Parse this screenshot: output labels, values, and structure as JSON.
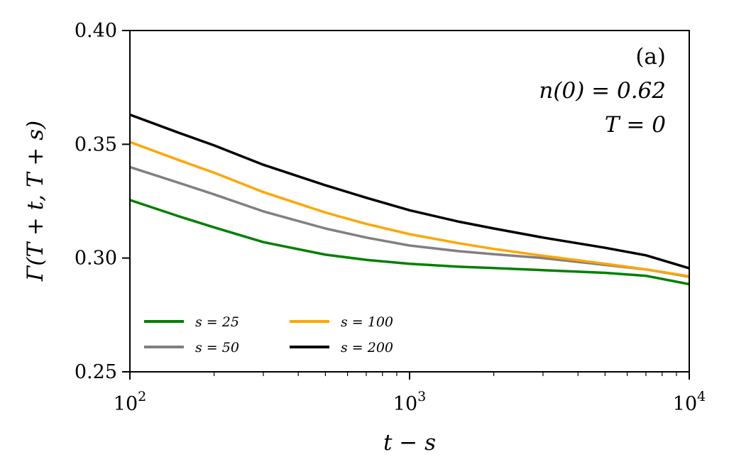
{
  "chart_data": {
    "type": "line",
    "panel_label": "(a)",
    "annotations": [
      "n(0) = 0.62",
      "T = 0"
    ],
    "xlabel": "t − s",
    "ylabel": "Γ(T + t, T + s)",
    "xscale": "log",
    "xlim": [
      100,
      10000
    ],
    "ylim": [
      0.25,
      0.4
    ],
    "x_ticks": [
      {
        "value": 100,
        "base": "10",
        "exp": "2"
      },
      {
        "value": 1000,
        "base": "10",
        "exp": "3"
      },
      {
        "value": 10000,
        "base": "10",
        "exp": "4"
      }
    ],
    "y_ticks": [
      {
        "value": 0.25,
        "label": "0.25"
      },
      {
        "value": 0.3,
        "label": "0.30"
      },
      {
        "value": 0.35,
        "label": "0.35"
      },
      {
        "value": 0.4,
        "label": "0.40"
      }
    ],
    "grid": false,
    "legend_position": "lower-left",
    "legend_columns": 2,
    "x": [
      100,
      150,
      200,
      300,
      500,
      700,
      1000,
      1500,
      2000,
      3000,
      5000,
      7000,
      10000
    ],
    "series": [
      {
        "name": "s = 25",
        "color": "#008000",
        "values": [
          0.3255,
          0.3183,
          0.3135,
          0.307,
          0.3015,
          0.2992,
          0.2975,
          0.2962,
          0.2956,
          0.2947,
          0.2935,
          0.2922,
          0.2885
        ]
      },
      {
        "name": "s = 50",
        "color": "#808080",
        "values": [
          0.34,
          0.333,
          0.328,
          0.3205,
          0.313,
          0.309,
          0.3055,
          0.303,
          0.3017,
          0.3,
          0.297,
          0.295,
          0.2918
        ]
      },
      {
        "name": "s = 100",
        "color": "#FFA500",
        "values": [
          0.351,
          0.343,
          0.3375,
          0.329,
          0.32,
          0.315,
          0.3105,
          0.3065,
          0.304,
          0.301,
          0.2975,
          0.295,
          0.292
        ]
      },
      {
        "name": "s = 200",
        "color": "#000000",
        "values": [
          0.363,
          0.355,
          0.3495,
          0.341,
          0.332,
          0.3265,
          0.321,
          0.316,
          0.313,
          0.309,
          0.3045,
          0.3012,
          0.2955
        ]
      }
    ]
  }
}
